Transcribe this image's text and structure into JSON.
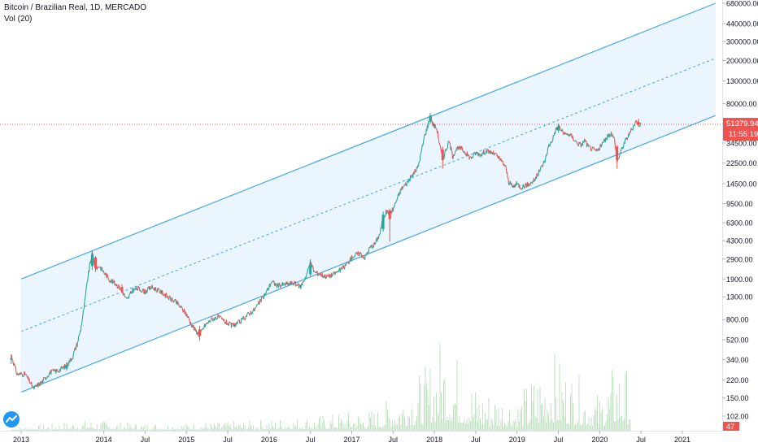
{
  "legend": {
    "symbol": "Bitcoin / Brazilian Real, 1D, MERCADO",
    "volume": "Vol (20)"
  },
  "price_badge": {
    "price": "51379.94",
    "countdown": "11:55:19",
    "color": "#ef5350"
  },
  "volume_badge": {
    "value": "47",
    "color": "#ef5350"
  },
  "colors": {
    "channel_line": "#42a5f5",
    "channel_fill": "#e3f2fd",
    "up": "#26a69a",
    "down": "#ef5350",
    "volume": "#a5d6a7"
  },
  "chart_data": {
    "type": "candlestick",
    "y_scale": "log",
    "y_ticks": [
      102,
      150,
      220,
      340,
      520,
      800,
      1300,
      1900,
      2900,
      4300,
      6300,
      9500,
      14500,
      22500,
      34500,
      52000,
      80000,
      130000,
      200000,
      300000,
      440000,
      680000
    ],
    "y_tick_labels": [
      "102.00",
      "150.00",
      "220.00",
      "340.00",
      "520.00",
      "800.00",
      "1300.00",
      "1900.00",
      "2900.00",
      "4300.00",
      "6300.00",
      "9500.00",
      "14500.00",
      "22500.00",
      "34500.00",
      "52000.00",
      "80000.00",
      "130000.00",
      "200000.00",
      "300000.00",
      "440000.00",
      "680000.00"
    ],
    "x_ticks": [
      {
        "label": "2013",
        "t": 2013.0
      },
      {
        "label": "2014",
        "t": 2014.0
      },
      {
        "label": "Jul",
        "t": 2014.5
      },
      {
        "label": "2015",
        "t": 2015.0
      },
      {
        "label": "Jul",
        "t": 2015.5
      },
      {
        "label": "2016",
        "t": 2016.0
      },
      {
        "label": "Jul",
        "t": 2016.5
      },
      {
        "label": "2017",
        "t": 2017.0
      },
      {
        "label": "Jul",
        "t": 2017.5
      },
      {
        "label": "2018",
        "t": 2018.0
      },
      {
        "label": "Jul",
        "t": 2018.5
      },
      {
        "label": "2019",
        "t": 2019.0
      },
      {
        "label": "Jul",
        "t": 2019.5
      },
      {
        "label": "2020",
        "t": 2020.0
      },
      {
        "label": "Jul",
        "t": 2020.5
      },
      {
        "label": "2021",
        "t": 2021.0
      }
    ],
    "price_path": [
      [
        2012.88,
        380
      ],
      [
        2012.95,
        250
      ],
      [
        2013.05,
        250
      ],
      [
        2013.15,
        185
      ],
      [
        2013.25,
        210
      ],
      [
        2013.35,
        260
      ],
      [
        2013.45,
        270
      ],
      [
        2013.55,
        300
      ],
      [
        2013.62,
        360
      ],
      [
        2013.68,
        480
      ],
      [
        2013.72,
        650
      ],
      [
        2013.76,
        1000
      ],
      [
        2013.8,
        1800
      ],
      [
        2013.83,
        2500
      ],
      [
        2013.86,
        3300
      ],
      [
        2013.9,
        2400
      ],
      [
        2013.95,
        2500
      ],
      [
        2014.0,
        2200
      ],
      [
        2014.08,
        1850
      ],
      [
        2014.15,
        1700
      ],
      [
        2014.22,
        1500
      ],
      [
        2014.28,
        1200
      ],
      [
        2014.35,
        1500
      ],
      [
        2014.42,
        1550
      ],
      [
        2014.5,
        1450
      ],
      [
        2014.58,
        1600
      ],
      [
        2014.65,
        1500
      ],
      [
        2014.72,
        1400
      ],
      [
        2014.8,
        1250
      ],
      [
        2014.88,
        1150
      ],
      [
        2014.95,
        1000
      ],
      [
        2015.0,
        900
      ],
      [
        2015.05,
        750
      ],
      [
        2015.1,
        650
      ],
      [
        2015.16,
        570
      ],
      [
        2015.22,
        700
      ],
      [
        2015.3,
        800
      ],
      [
        2015.38,
        850
      ],
      [
        2015.45,
        780
      ],
      [
        2015.55,
        700
      ],
      [
        2015.65,
        760
      ],
      [
        2015.75,
        900
      ],
      [
        2015.82,
        980
      ],
      [
        2015.9,
        1200
      ],
      [
        2015.96,
        1400
      ],
      [
        2016.03,
        1800
      ],
      [
        2016.1,
        1650
      ],
      [
        2016.2,
        1700
      ],
      [
        2016.3,
        1750
      ],
      [
        2016.38,
        1600
      ],
      [
        2016.45,
        2050
      ],
      [
        2016.5,
        2700
      ],
      [
        2016.55,
        2200
      ],
      [
        2016.62,
        2100
      ],
      [
        2016.7,
        2000
      ],
      [
        2016.78,
        2100
      ],
      [
        2016.86,
        2300
      ],
      [
        2016.92,
        2500
      ],
      [
        2017.0,
        3000
      ],
      [
        2017.05,
        3200
      ],
      [
        2017.1,
        3300
      ],
      [
        2017.16,
        3000
      ],
      [
        2017.22,
        3700
      ],
      [
        2017.28,
        4000
      ],
      [
        2017.34,
        5000
      ],
      [
        2017.38,
        7000
      ],
      [
        2017.42,
        8000
      ],
      [
        2017.46,
        7800
      ],
      [
        2017.5,
        8400
      ],
      [
        2017.55,
        10500
      ],
      [
        2017.6,
        13000
      ],
      [
        2017.66,
        14500
      ],
      [
        2017.7,
        16000
      ],
      [
        2017.76,
        18500
      ],
      [
        2017.8,
        20500
      ],
      [
        2017.84,
        28000
      ],
      [
        2017.88,
        40000
      ],
      [
        2017.92,
        50000
      ],
      [
        2017.95,
        63000
      ],
      [
        2017.98,
        52000
      ],
      [
        2018.03,
        47000
      ],
      [
        2018.06,
        35000
      ],
      [
        2018.1,
        24000
      ],
      [
        2018.14,
        30000
      ],
      [
        2018.18,
        36000
      ],
      [
        2018.22,
        26000
      ],
      [
        2018.26,
        30000
      ],
      [
        2018.32,
        31000
      ],
      [
        2018.38,
        28000
      ],
      [
        2018.44,
        25000
      ],
      [
        2018.5,
        28000
      ],
      [
        2018.56,
        27000
      ],
      [
        2018.62,
        29000
      ],
      [
        2018.68,
        28500
      ],
      [
        2018.74,
        27000
      ],
      [
        2018.8,
        24000
      ],
      [
        2018.86,
        21000
      ],
      [
        2018.9,
        15000
      ],
      [
        2018.95,
        13500
      ],
      [
        2019.0,
        14500
      ],
      [
        2019.05,
        13500
      ],
      [
        2019.1,
        14000
      ],
      [
        2019.16,
        14500
      ],
      [
        2019.22,
        16000
      ],
      [
        2019.28,
        19500
      ],
      [
        2019.34,
        24000
      ],
      [
        2019.38,
        32000
      ],
      [
        2019.42,
        36000
      ],
      [
        2019.46,
        44000
      ],
      [
        2019.5,
        50000
      ],
      [
        2019.54,
        45000
      ],
      [
        2019.58,
        41000
      ],
      [
        2019.62,
        42000
      ],
      [
        2019.66,
        40000
      ],
      [
        2019.72,
        35000
      ],
      [
        2019.78,
        33000
      ],
      [
        2019.82,
        37000
      ],
      [
        2019.86,
        32000
      ],
      [
        2019.92,
        30000
      ],
      [
        2019.97,
        29000
      ],
      [
        2020.02,
        33000
      ],
      [
        2020.08,
        38000
      ],
      [
        2020.14,
        43000
      ],
      [
        2020.18,
        37000
      ],
      [
        2020.21,
        23000
      ],
      [
        2020.25,
        28000
      ],
      [
        2020.3,
        35000
      ],
      [
        2020.36,
        42000
      ],
      [
        2020.4,
        48000
      ],
      [
        2020.44,
        55000
      ],
      [
        2020.47,
        52000
      ],
      [
        2020.5,
        51380
      ]
    ],
    "candles": [
      {
        "t": 2012.88,
        "o": 340,
        "h": 380,
        "l": 310,
        "c": 350
      },
      {
        "t": 2013.55,
        "o": 280,
        "h": 320,
        "l": 270,
        "c": 300
      },
      {
        "t": 2013.86,
        "o": 2500,
        "h": 3400,
        "l": 2300,
        "c": 3200
      },
      {
        "t": 2013.9,
        "o": 3000,
        "h": 3100,
        "l": 2200,
        "c": 2400
      },
      {
        "t": 2014.22,
        "o": 1600,
        "h": 1700,
        "l": 1400,
        "c": 1450
      },
      {
        "t": 2015.16,
        "o": 650,
        "h": 700,
        "l": 510,
        "c": 560
      },
      {
        "t": 2016.5,
        "o": 2100,
        "h": 2900,
        "l": 2000,
        "c": 2600
      },
      {
        "t": 2017.38,
        "o": 5500,
        "h": 8000,
        "l": 5200,
        "c": 7500
      },
      {
        "t": 2017.46,
        "o": 8200,
        "h": 8500,
        "l": 4200,
        "c": 6800
      },
      {
        "t": 2017.95,
        "o": 55000,
        "h": 66000,
        "l": 52000,
        "c": 62000
      },
      {
        "t": 2018.1,
        "o": 30000,
        "h": 32000,
        "l": 20000,
        "c": 24000
      },
      {
        "t": 2019.5,
        "o": 45000,
        "h": 52000,
        "l": 43000,
        "c": 49000
      },
      {
        "t": 2020.21,
        "o": 32000,
        "h": 33000,
        "l": 20000,
        "c": 24000
      },
      {
        "t": 2020.47,
        "o": 54000,
        "h": 58000,
        "l": 49000,
        "c": 51380
      }
    ],
    "volume_profile": [
      [
        2013.0,
        2
      ],
      [
        2013.8,
        6
      ],
      [
        2014.5,
        4
      ],
      [
        2015.5,
        5
      ],
      [
        2016.5,
        8
      ],
      [
        2017.3,
        12
      ],
      [
        2017.9,
        35
      ],
      [
        2018.1,
        55
      ],
      [
        2018.5,
        25
      ],
      [
        2019.0,
        18
      ],
      [
        2019.4,
        45
      ],
      [
        2019.6,
        35
      ],
      [
        2020.0,
        20
      ],
      [
        2020.2,
        40
      ],
      [
        2020.45,
        30
      ]
    ],
    "channel": {
      "upper": [
        [
          2013.0,
          1900
        ],
        [
          2021.4,
          680000
        ]
      ],
      "middle": [
        [
          2013.0,
          620
        ],
        [
          2021.4,
          210000
        ]
      ],
      "lower": [
        [
          2013.0,
          170
        ],
        [
          2021.4,
          62000
        ]
      ]
    }
  }
}
